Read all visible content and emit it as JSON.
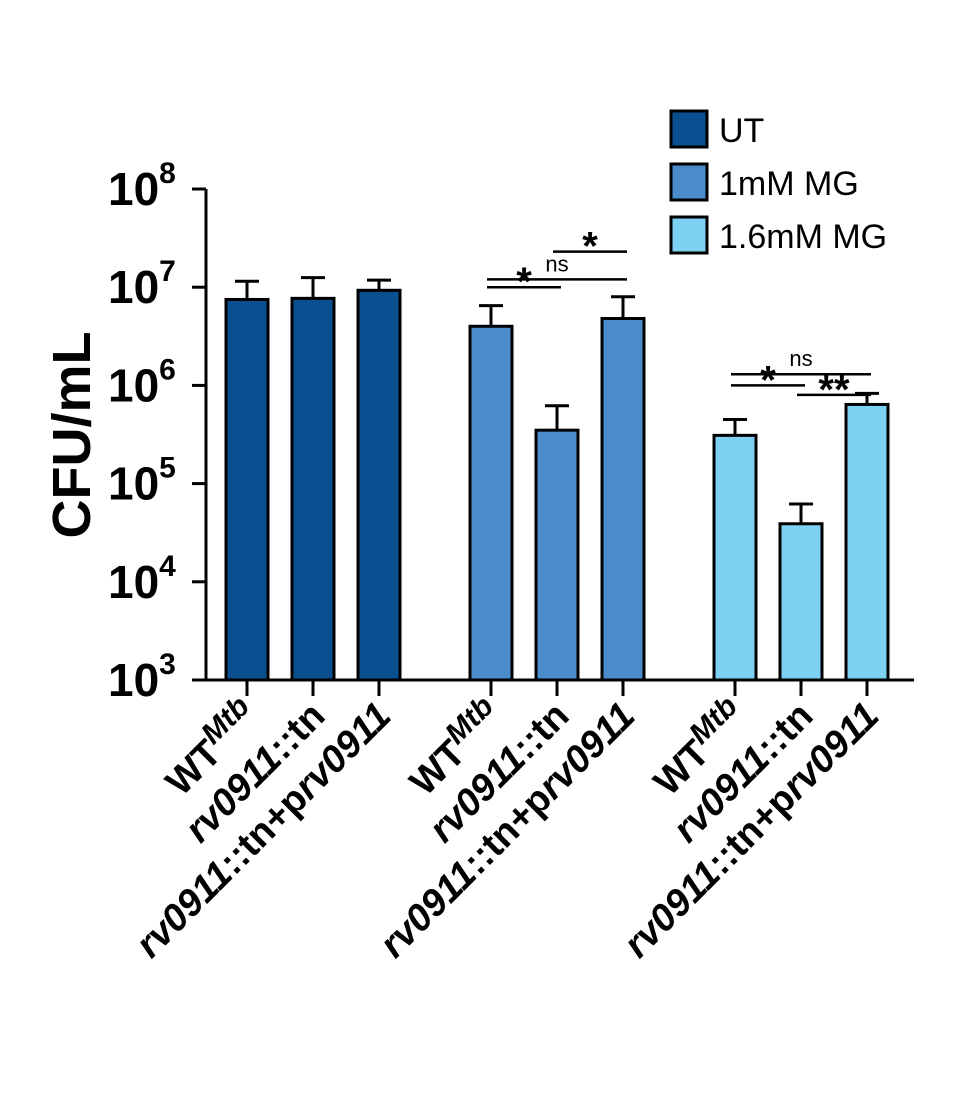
{
  "chart_data": {
    "type": "bar",
    "ylabel": "CFU/mL",
    "yscale": "log10",
    "ylim": [
      1000,
      100000000
    ],
    "yticks": [
      {
        "value": 1000,
        "base": "10",
        "exp": "3"
      },
      {
        "value": 10000,
        "base": "10",
        "exp": "4"
      },
      {
        "value": 100000,
        "base": "10",
        "exp": "5"
      },
      {
        "value": 1000000,
        "base": "10",
        "exp": "6"
      },
      {
        "value": 10000000,
        "base": "10",
        "exp": "7"
      },
      {
        "value": 100000000,
        "base": "10",
        "exp": "8"
      }
    ],
    "legend_position": "top-right",
    "series": [
      {
        "name": "UT",
        "color": "#0A4F8F",
        "categories": [
          {
            "parts": [
              {
                "t": "WT",
                "i": false
              },
              {
                "t": "Mtb",
                "i": true,
                "sup": true
              }
            ]
          },
          {
            "parts": [
              {
                "t": "rv0911",
                "i": true
              },
              {
                "t": "::tn",
                "i": false
              }
            ]
          },
          {
            "parts": [
              {
                "t": "rv0911",
                "i": true
              },
              {
                "t": "::tn+p",
                "i": false
              },
              {
                "t": "rv0911",
                "i": true
              }
            ]
          }
        ],
        "values": [
          7500000,
          7700000,
          9300000
        ],
        "errors": [
          4000000,
          4800000,
          2500000
        ]
      },
      {
        "name": "1mM MG",
        "color": "#4A8BCC",
        "categories": [
          {
            "parts": [
              {
                "t": "WT",
                "i": false
              },
              {
                "t": "Mtb",
                "i": true,
                "sup": true
              }
            ]
          },
          {
            "parts": [
              {
                "t": "rv0911",
                "i": true
              },
              {
                "t": "::tn",
                "i": false
              }
            ]
          },
          {
            "parts": [
              {
                "t": "rv0911",
                "i": true
              },
              {
                "t": "::tn+p",
                "i": false
              },
              {
                "t": "rv0911",
                "i": true
              }
            ]
          }
        ],
        "values": [
          4000000,
          350000,
          4800000
        ],
        "errors": [
          2500000,
          270000,
          3200000
        ]
      },
      {
        "name": "1.6mM MG",
        "color": "#7DD1F3",
        "categories": [
          {
            "parts": [
              {
                "t": "WT",
                "i": false
              },
              {
                "t": "Mtb",
                "i": true,
                "sup": true
              }
            ]
          },
          {
            "parts": [
              {
                "t": "rv0911",
                "i": true
              },
              {
                "t": "::tn",
                "i": false
              }
            ]
          },
          {
            "parts": [
              {
                "t": "rv0911",
                "i": true
              },
              {
                "t": "::tn+p",
                "i": false
              },
              {
                "t": "rv0911",
                "i": true
              }
            ]
          }
        ],
        "values": [
          310000,
          39000,
          640000
        ],
        "errors": [
          140000,
          23000,
          190000
        ]
      }
    ],
    "significance": [
      {
        "group": 1,
        "from": 0,
        "to": 2,
        "label": "ns",
        "y": 12000000
      },
      {
        "group": 1,
        "from": 0,
        "to": 1,
        "label": "*",
        "y": 10000000
      },
      {
        "group": 1,
        "from": 1,
        "to": 2,
        "label": "*",
        "y": 23000000
      },
      {
        "group": 2,
        "from": 0,
        "to": 2,
        "label": "ns",
        "y": 1300000
      },
      {
        "group": 2,
        "from": 0,
        "to": 1,
        "label": "*",
        "y": 1000000
      },
      {
        "group": 2,
        "from": 1,
        "to": 2,
        "label": "**",
        "y": 800000
      }
    ]
  }
}
